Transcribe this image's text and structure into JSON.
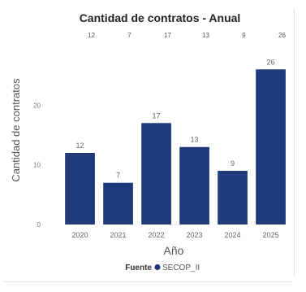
{
  "visual": {
    "title": "Cantidad de contratos - Anual"
  },
  "chart_data": {
    "type": "bar",
    "title": "Cantidad de contratos - Anual",
    "xlabel": "Año",
    "ylabel": "Cantidad de contratos",
    "categories": [
      "2020",
      "2021",
      "2022",
      "2023",
      "2024",
      "2025"
    ],
    "series": [
      {
        "name": "SECOP_II",
        "values": [
          12,
          7,
          17,
          13,
          9,
          26
        ],
        "color": "#1f3a7a"
      }
    ],
    "top_labels": [
      "12",
      "7",
      "17",
      "13",
      "9",
      "26"
    ],
    "ylim": [
      0,
      30
    ],
    "yticks": [
      0,
      10,
      20
    ],
    "grid": false,
    "legend": {
      "title": "Fuente",
      "entries": [
        "SECOP_II"
      ],
      "placement": "bottom"
    }
  }
}
